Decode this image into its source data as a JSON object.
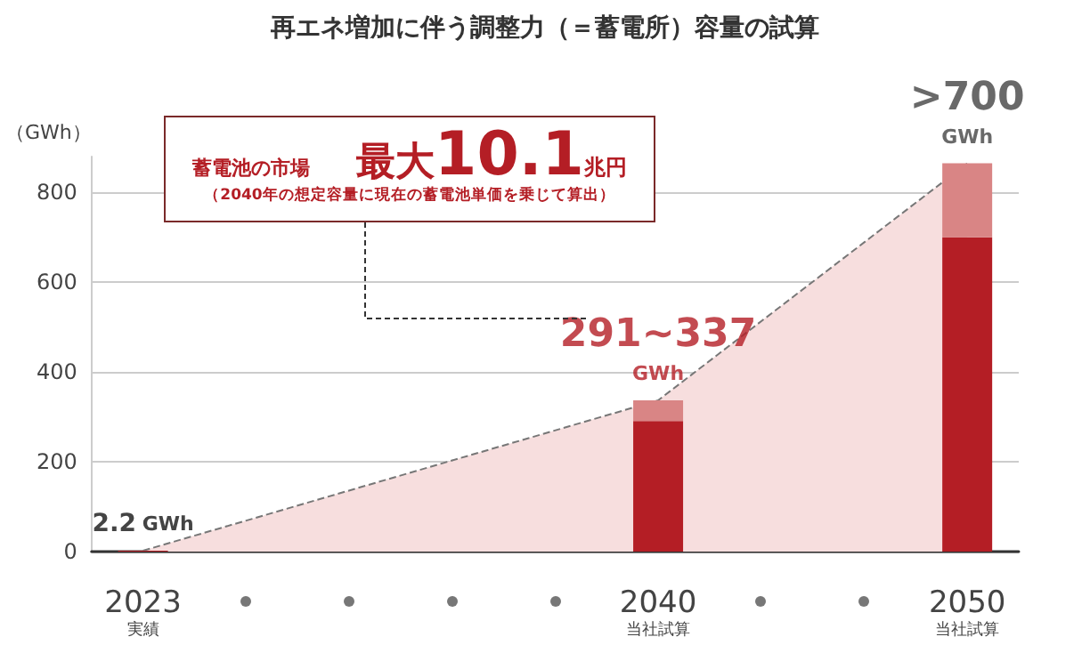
{
  "chart_data": {
    "type": "bar",
    "title": "再エネ増加に伴う調整力（＝蓄電所）容量の試算",
    "ylabel": "（GWh）",
    "categories": [
      "2023\n実績",
      null,
      null,
      null,
      null,
      "2040\n当社試算",
      null,
      null,
      "2050\n当社試算"
    ],
    "ylim": [
      0,
      880
    ],
    "yticks": [
      0,
      200,
      400,
      600,
      800
    ],
    "grid": "y",
    "series": [
      {
        "color": "#b41e25",
        "values": [
          2.2,
          null,
          null,
          null,
          null,
          291,
          null,
          null,
          700
        ],
        "value_labels": [
          "2.2 GWh",
          null,
          null,
          null,
          null,
          null,
          null,
          null,
          null
        ]
      },
      {
        "color": "#d98585",
        "values": [
          null,
          null,
          null,
          null,
          null,
          46,
          null,
          null,
          165
        ],
        "base": [
          null,
          null,
          null,
          null,
          null,
          291,
          null,
          null,
          700
        ]
      },
      {
        "type": "area",
        "color": "#f7dede",
        "line_style": "dashed",
        "values": [
          2,
          null,
          null,
          null,
          null,
          337,
          null,
          null,
          865
        ]
      }
    ],
    "annotations": [
      "蓄電池の市場",
      "最大10.1兆円",
      "（2040年の想定容量に現在の蓄電池単価を乗じて算出）",
      {
        "text": "291~337\nGWh",
        "x": "2040\n当社試算",
        "y": 337
      },
      {
        "text": ">700\nGWh",
        "x": "2050\n当社試算",
        "y": 865
      }
    ]
  }
}
